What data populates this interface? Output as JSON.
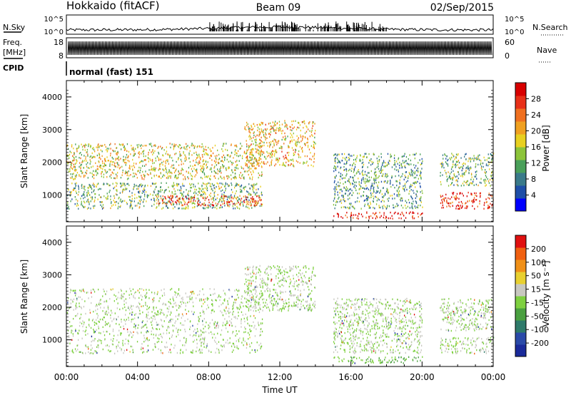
{
  "header": {
    "station": "Hokkaido (fitACF)",
    "beam": "Beam 09",
    "date": "02/Sep/2015"
  },
  "noise_panel": {
    "left_label": "N.Sky",
    "right_label": "N.Search",
    "ticks_left": [
      "10^5",
      "10^0"
    ],
    "ticks_right": [
      "10^5",
      "10^0"
    ]
  },
  "freq_panel": {
    "left_label_line1": "Freq.",
    "left_label_line2": "[MHz]",
    "right_label": "Nave",
    "ticks_left": [
      "18",
      "8"
    ],
    "ticks_right": [
      "60",
      "0"
    ]
  },
  "cpid": {
    "label": "CPID",
    "value": "normal (fast) 151"
  },
  "x_axis": {
    "title": "Time UT",
    "ticks": [
      "00:00",
      "04:00",
      "08:00",
      "12:00",
      "16:00",
      "20:00",
      "00:00"
    ]
  },
  "power_panel": {
    "ylabel": "Slant Range [km]",
    "yticks": [
      "1000",
      "2000",
      "3000",
      "4000"
    ],
    "colorbar_label": "Power [dB]",
    "colorbar_ticks": [
      "4",
      "8",
      "12",
      "16",
      "20",
      "24",
      "28"
    ],
    "colors": [
      "#0000ff",
      "#1f4fa8",
      "#3a7a8a",
      "#4aa05a",
      "#8cc43a",
      "#e8d020",
      "#f0a020",
      "#f07020",
      "#e83018",
      "#d80000"
    ]
  },
  "velocity_panel": {
    "ylabel": "Slant Range [km]",
    "yticks": [
      "1000",
      "2000",
      "3000",
      "4000"
    ],
    "colorbar_label": "Velocity [m s⁻¹]",
    "colorbar_ticks": [
      "200",
      "100",
      "50",
      "15",
      "-15",
      "-50",
      "-100",
      "-200"
    ],
    "colors": [
      "#1a2a9a",
      "#2a4aa8",
      "#2e7a6a",
      "#4aa040",
      "#7ed040",
      "#c8c8c0",
      "#e8d030",
      "#f09018",
      "#f06010",
      "#e01010"
    ]
  },
  "chart_data": {
    "type": "heatmap",
    "title": "Hokkaido (fitACF)",
    "xlabel": "Time UT",
    "ylabel": "Slant Range [km]",
    "x_range_hours": [
      0,
      24
    ],
    "y_range_km": [
      180,
      4500
    ],
    "panels": [
      {
        "name": "Power",
        "units": "dB",
        "color_range": [
          0,
          30
        ],
        "regions": [
          {
            "t": [
              0,
              11
            ],
            "range_km": [
              600,
              1400
            ],
            "level": 12
          },
          {
            "t": [
              0,
              11
            ],
            "range_km": [
              1500,
              2600
            ],
            "level": 16
          },
          {
            "t": [
              5,
              11
            ],
            "range_km": [
              700,
              1000
            ],
            "level": 26
          },
          {
            "t": [
              10,
              14
            ],
            "range_km": [
              1900,
              3300
            ],
            "level": 18
          },
          {
            "t": [
              15,
              20
            ],
            "range_km": [
              300,
              500
            ],
            "level": 28
          },
          {
            "t": [
              15,
              20
            ],
            "range_km": [
              600,
              2300
            ],
            "level": 10
          },
          {
            "t": [
              21,
              24
            ],
            "range_km": [
              600,
              1100
            ],
            "level": 26
          },
          {
            "t": [
              21,
              24
            ],
            "range_km": [
              1300,
              2300
            ],
            "level": 12
          }
        ]
      },
      {
        "name": "Velocity",
        "units": "m s-1",
        "color_range": [
          -200,
          200
        ],
        "regions": [
          {
            "t": [
              0,
              11
            ],
            "range_km": [
              600,
              2600
            ],
            "level": 0
          },
          {
            "t": [
              10,
              14
            ],
            "range_km": [
              1900,
              3300
            ],
            "level": 0
          },
          {
            "t": [
              15,
              20
            ],
            "range_km": [
              300,
              500
            ],
            "level": -40
          },
          {
            "t": [
              15,
              20
            ],
            "range_km": [
              600,
              2300
            ],
            "level": 0
          },
          {
            "t": [
              21,
              24
            ],
            "range_km": [
              600,
              1100
            ],
            "level": 0
          },
          {
            "t": [
              21,
              24
            ],
            "range_km": [
              1300,
              2300
            ],
            "level": 0
          }
        ]
      }
    ]
  }
}
